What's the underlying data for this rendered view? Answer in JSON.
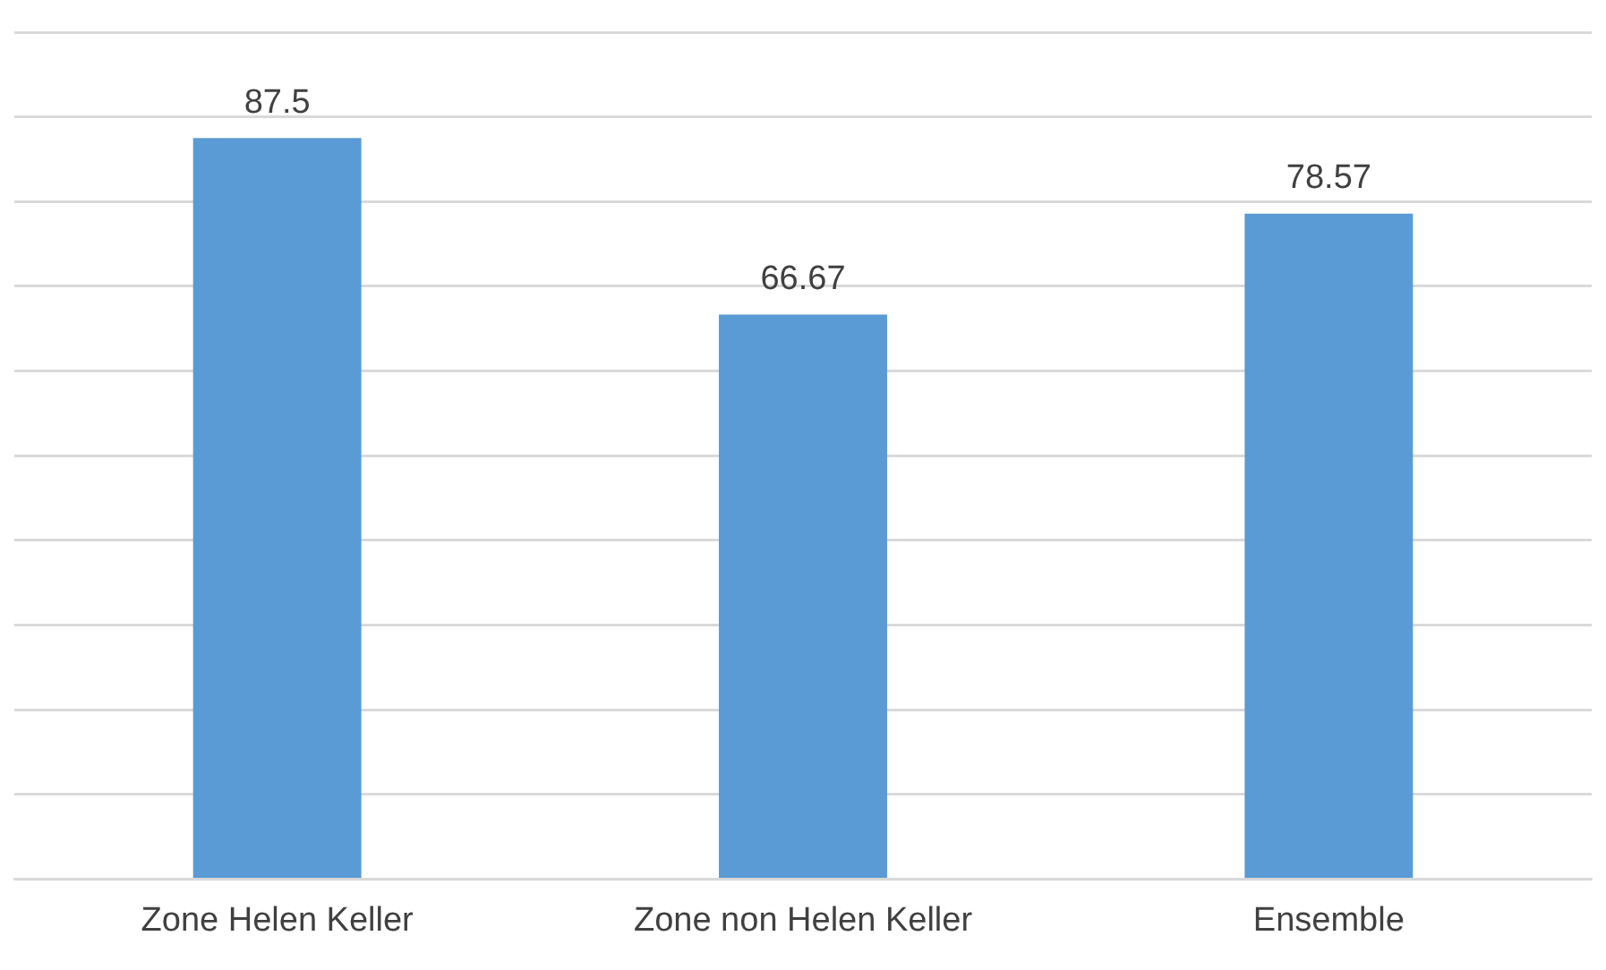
{
  "chart_data": {
    "type": "bar",
    "categories": [
      "Zone Helen Keller",
      "Zone non Helen Keller",
      "Ensemble"
    ],
    "values": [
      87.5,
      66.67,
      78.57
    ],
    "color": "#5b9bd5",
    "data_labels": true,
    "grid": "y",
    "tick_labels": "x",
    "legend": false,
    "ylim": [
      0,
      100
    ],
    "yticks": [
      {
        "value": 0,
        "label": null
      },
      {
        "value": 10,
        "label": null
      },
      {
        "value": 20,
        "label": null
      },
      {
        "value": 30,
        "label": null
      },
      {
        "value": 40,
        "label": null
      },
      {
        "value": 50,
        "label": null
      },
      {
        "value": 60,
        "label": null
      },
      {
        "value": 70,
        "label": null
      },
      {
        "value": 80,
        "label": null
      },
      {
        "value": 90,
        "label": null
      },
      {
        "value": 100,
        "label": null
      }
    ]
  }
}
